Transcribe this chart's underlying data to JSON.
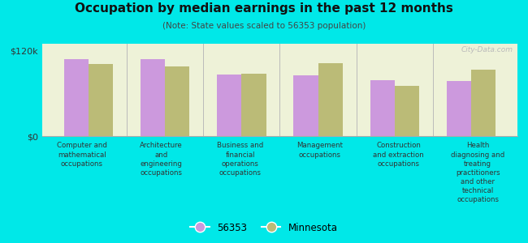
{
  "title": "Occupation by median earnings in the past 12 months",
  "subtitle": "(Note: State values scaled to 56353 population)",
  "background_color": "#00e8e8",
  "plot_background_color": "#eef2d8",
  "categories": [
    "Computer and\nmathematical\noccupations",
    "Architecture\nand\nengineering\noccupations",
    "Business and\nfinancial\noperations\noccupations",
    "Management\noccupations",
    "Construction\nand extraction\noccupations",
    "Health\ndiagnosing and\ntreating\npractitioners\nand other\ntechnical\noccupations"
  ],
  "values_56353": [
    108000,
    108000,
    87000,
    85000,
    79000,
    77000
  ],
  "values_minnesota": [
    102000,
    98000,
    88000,
    103000,
    71000,
    93000
  ],
  "color_56353": "#cc99dd",
  "color_minnesota": "#bbbb77",
  "ylim": [
    0,
    130000
  ],
  "ytick_labels": [
    "$0",
    "$120k"
  ],
  "ytick_vals": [
    0,
    120000
  ],
  "legend_label_56353": "56353",
  "legend_label_minnesota": "Minnesota",
  "watermark": "City-Data.com",
  "separator_color": "#bbbbbb",
  "bar_width": 0.32
}
